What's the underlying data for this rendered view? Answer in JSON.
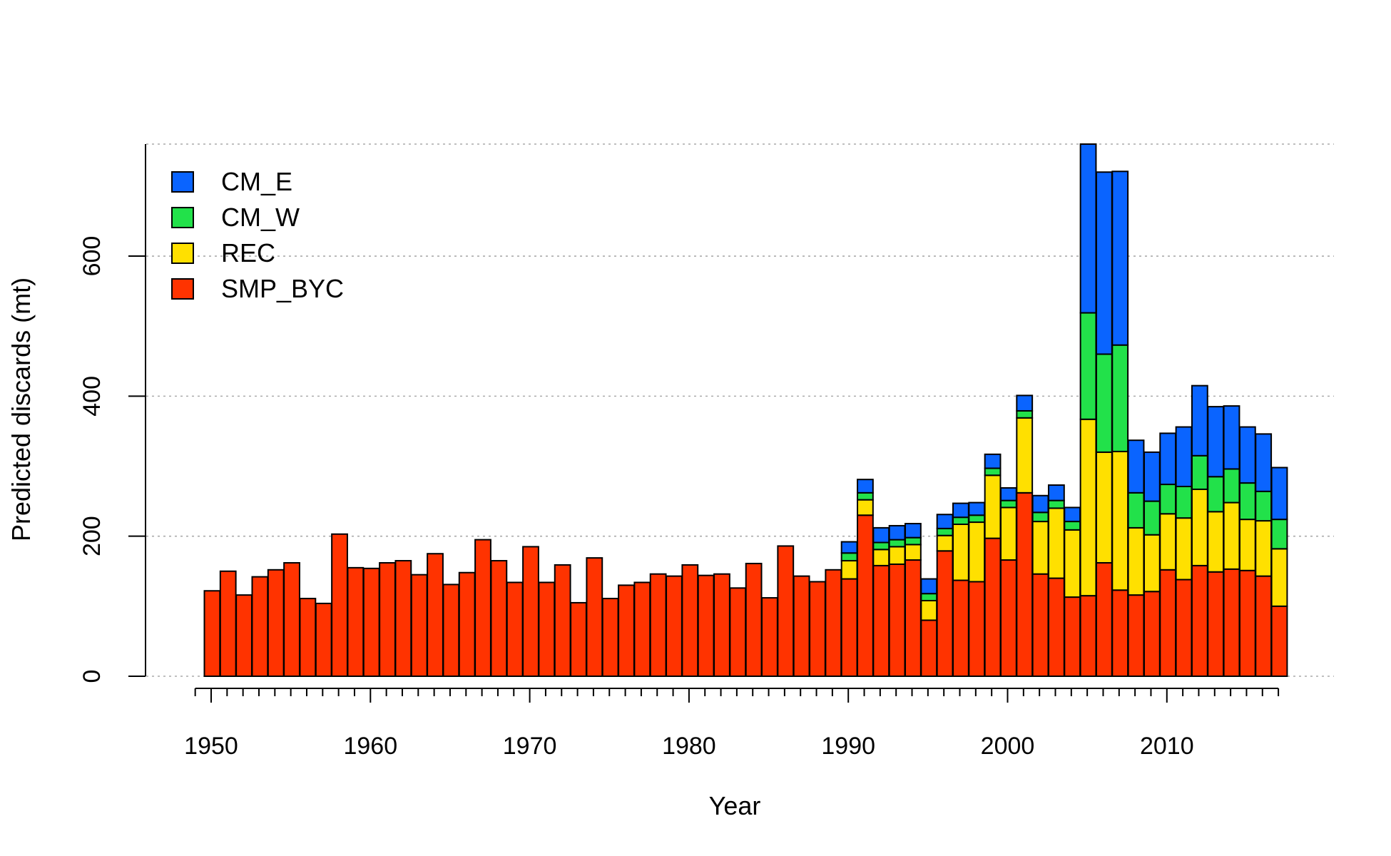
{
  "chart_data": {
    "type": "bar",
    "stacked": true,
    "xlabel": "Year",
    "ylabel": "Predicted discards (mt)",
    "ylim": [
      0,
      760
    ],
    "yticks": [
      0,
      200,
      400,
      600
    ],
    "xticks": [
      1950,
      1960,
      1970,
      1980,
      1990,
      2000,
      2010
    ],
    "grid": "horizontal dotted",
    "legend_position": "top-left",
    "categories": [
      1950,
      1951,
      1952,
      1953,
      1954,
      1955,
      1956,
      1957,
      1958,
      1959,
      1960,
      1961,
      1962,
      1963,
      1964,
      1965,
      1966,
      1967,
      1968,
      1969,
      1970,
      1971,
      1972,
      1973,
      1974,
      1975,
      1976,
      1977,
      1978,
      1979,
      1980,
      1981,
      1982,
      1983,
      1984,
      1985,
      1986,
      1987,
      1988,
      1989,
      1990,
      1991,
      1992,
      1993,
      1994,
      1995,
      1996,
      1997,
      1998,
      1999,
      2000,
      2001,
      2002,
      2003,
      2004,
      2005,
      2006,
      2007,
      2008,
      2009,
      2010,
      2011,
      2012,
      2013,
      2014,
      2015,
      2016,
      2017
    ],
    "series": [
      {
        "name": "SMP_BYC",
        "color": "#FF3300",
        "values": [
          122,
          150,
          116,
          142,
          152,
          162,
          111,
          104,
          203,
          155,
          154,
          162,
          165,
          145,
          175,
          131,
          148,
          195,
          165,
          134,
          185,
          134,
          159,
          105,
          169,
          111,
          130,
          134,
          146,
          143,
          159,
          144,
          146,
          126,
          161,
          112,
          186,
          143,
          135,
          152,
          139,
          230,
          158,
          160,
          166,
          80,
          179,
          137,
          135,
          197,
          166,
          262,
          146,
          140,
          113,
          115,
          162,
          123,
          116,
          121,
          152,
          138,
          158,
          149,
          153,
          151,
          143,
          100
        ]
      },
      {
        "name": "REC",
        "color": "#FFE000",
        "values": [
          0,
          0,
          0,
          0,
          0,
          0,
          0,
          0,
          0,
          0,
          0,
          0,
          0,
          0,
          0,
          0,
          0,
          0,
          0,
          0,
          0,
          0,
          0,
          0,
          0,
          0,
          0,
          0,
          0,
          0,
          0,
          0,
          0,
          0,
          0,
          0,
          0,
          0,
          0,
          0,
          26,
          22,
          23,
          25,
          22,
          28,
          22,
          80,
          85,
          90,
          75,
          107,
          75,
          100,
          96,
          252,
          158,
          198,
          96,
          81,
          80,
          88,
          109,
          86,
          95,
          73,
          79,
          82
        ]
      },
      {
        "name": "CM_W",
        "color": "#22E14A",
        "values": [
          0,
          0,
          0,
          0,
          0,
          0,
          0,
          0,
          0,
          0,
          0,
          0,
          0,
          0,
          0,
          0,
          0,
          0,
          0,
          0,
          0,
          0,
          0,
          0,
          0,
          0,
          0,
          0,
          0,
          0,
          0,
          0,
          0,
          0,
          0,
          0,
          0,
          0,
          0,
          0,
          11,
          10,
          10,
          10,
          10,
          10,
          10,
          10,
          10,
          10,
          10,
          10,
          13,
          11,
          12,
          152,
          140,
          152,
          50,
          48,
          42,
          45,
          48,
          50,
          48,
          52,
          42,
          42
        ]
      },
      {
        "name": "CM_E",
        "color": "#0A64FF",
        "values": [
          0,
          0,
          0,
          0,
          0,
          0,
          0,
          0,
          0,
          0,
          0,
          0,
          0,
          0,
          0,
          0,
          0,
          0,
          0,
          0,
          0,
          0,
          0,
          0,
          0,
          0,
          0,
          0,
          0,
          0,
          0,
          0,
          0,
          0,
          0,
          0,
          0,
          0,
          0,
          0,
          16,
          19,
          21,
          20,
          20,
          21,
          20,
          20,
          18,
          20,
          18,
          22,
          24,
          22,
          20,
          241,
          260,
          248,
          75,
          70,
          73,
          85,
          100,
          100,
          90,
          80,
          82,
          74
        ]
      }
    ],
    "legend_order": [
      "CM_E",
      "CM_W",
      "REC",
      "SMP_BYC"
    ]
  }
}
